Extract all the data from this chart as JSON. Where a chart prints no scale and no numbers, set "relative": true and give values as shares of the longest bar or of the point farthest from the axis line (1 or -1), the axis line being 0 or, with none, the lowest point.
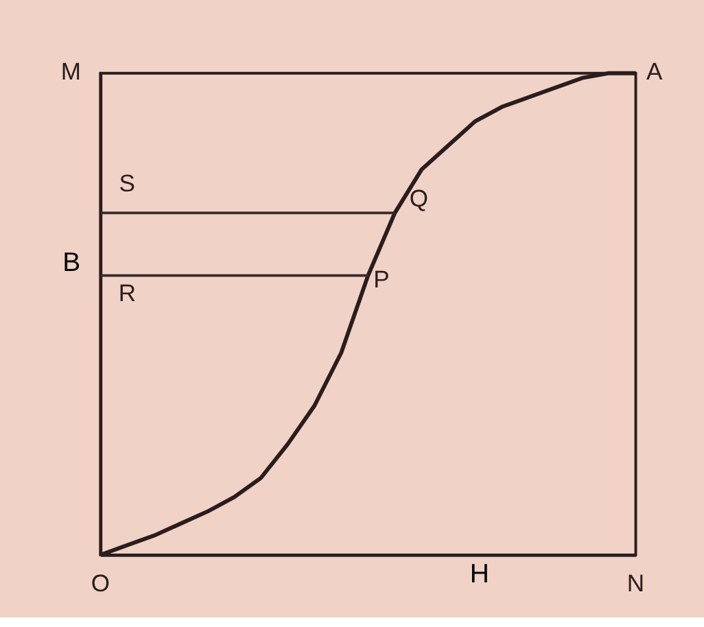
{
  "chart_data": {
    "type": "line",
    "relative": true,
    "xlabel": "H",
    "ylabel": "B",
    "categories": [
      null,
      null,
      null,
      null,
      null,
      null,
      null,
      null,
      null,
      null,
      null,
      null,
      null,
      null,
      null,
      null,
      null,
      null,
      null,
      null,
      null
    ],
    "series": [
      {
        "color": "#2b1d1d",
        "values": [
          0,
          0.02,
          0.04,
          0.065,
          0.09,
          0.12,
          0.16,
          0.23,
          0.31,
          0.42,
          0.58,
          0.71,
          0.8,
          0.85,
          0.9,
          0.93,
          0.95,
          0.97,
          0.99,
          1.0,
          1
        ]
      },
      {
        "color": "#3a2a2a",
        "values": [
          0.71,
          0.71,
          0.71,
          0.71,
          0.71,
          0.71,
          0.71,
          0.71,
          0.71,
          0.71,
          0.71,
          0.71,
          null,
          null,
          null,
          null,
          null,
          null,
          null,
          null,
          null
        ]
      },
      {
        "color": "#3a2a2a",
        "values": [
          0.58,
          0.58,
          0.58,
          0.58,
          0.58,
          0.58,
          0.58,
          0.58,
          0.58,
          0.58,
          0.58,
          null,
          null,
          null,
          null,
          null,
          null,
          null,
          null,
          null,
          null
        ]
      }
    ],
    "annotations": [
      "O",
      "M",
      "A",
      "N",
      "S",
      "Q",
      "R",
      "P"
    ],
    "grid": false,
    "marker": "none",
    "line_style": "solid"
  }
}
